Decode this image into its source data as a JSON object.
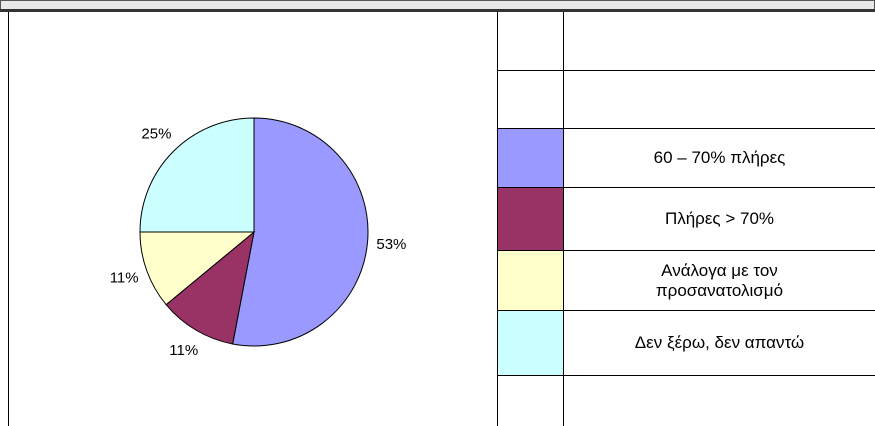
{
  "chart_data": {
    "type": "pie",
    "categories": [
      "60 – 70% πλήρες",
      "Πλήρες > 70%",
      "Ανάλογα με τον προσανατολισμό",
      "Δεν ξέρω, δεν απαντώ"
    ],
    "values": [
      53,
      11,
      11,
      25
    ],
    "value_labels": [
      "53%",
      "11%",
      "11%",
      "25%"
    ],
    "colors": [
      "#9999ff",
      "#993366",
      "#ffffcc",
      "#ccffff"
    ]
  }
}
